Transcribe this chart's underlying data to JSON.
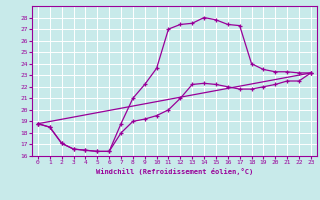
{
  "xlabel": "Windchill (Refroidissement éolien,°C)",
  "xlim": [
    -0.5,
    23.5
  ],
  "ylim": [
    16,
    29
  ],
  "xticks": [
    0,
    1,
    2,
    3,
    4,
    5,
    6,
    7,
    8,
    9,
    10,
    11,
    12,
    13,
    14,
    15,
    16,
    17,
    18,
    19,
    20,
    21,
    22,
    23
  ],
  "yticks": [
    16,
    17,
    18,
    19,
    20,
    21,
    22,
    23,
    24,
    25,
    26,
    27,
    28
  ],
  "bg_color": "#c8eaea",
  "line_color": "#990099",
  "grid_color": "#ffffff",
  "line1_x": [
    0,
    1,
    2,
    3,
    4,
    5,
    6,
    7,
    8,
    9,
    10,
    11,
    12,
    13,
    14,
    15,
    16,
    17,
    18,
    19,
    20,
    21,
    22,
    23
  ],
  "line1_y": [
    18.8,
    18.5,
    17.1,
    16.6,
    16.5,
    16.4,
    16.4,
    18.0,
    19.0,
    19.2,
    19.5,
    20.0,
    21.0,
    22.2,
    22.3,
    22.2,
    22.0,
    21.8,
    21.8,
    22.0,
    22.2,
    22.5,
    22.5,
    23.2
  ],
  "line2_x": [
    0,
    1,
    2,
    3,
    4,
    5,
    6,
    7,
    8,
    9,
    10,
    11,
    12,
    13,
    14,
    15,
    16,
    17,
    18,
    19,
    20,
    21,
    22,
    23
  ],
  "line2_y": [
    18.8,
    18.5,
    17.1,
    16.6,
    16.5,
    16.4,
    16.4,
    18.8,
    21.0,
    22.2,
    23.6,
    27.0,
    27.4,
    27.5,
    28.0,
    27.8,
    27.4,
    27.3,
    24.0,
    23.5,
    23.3,
    23.3,
    23.2,
    23.2
  ],
  "line3_x": [
    0,
    23
  ],
  "line3_y": [
    18.8,
    23.2
  ]
}
